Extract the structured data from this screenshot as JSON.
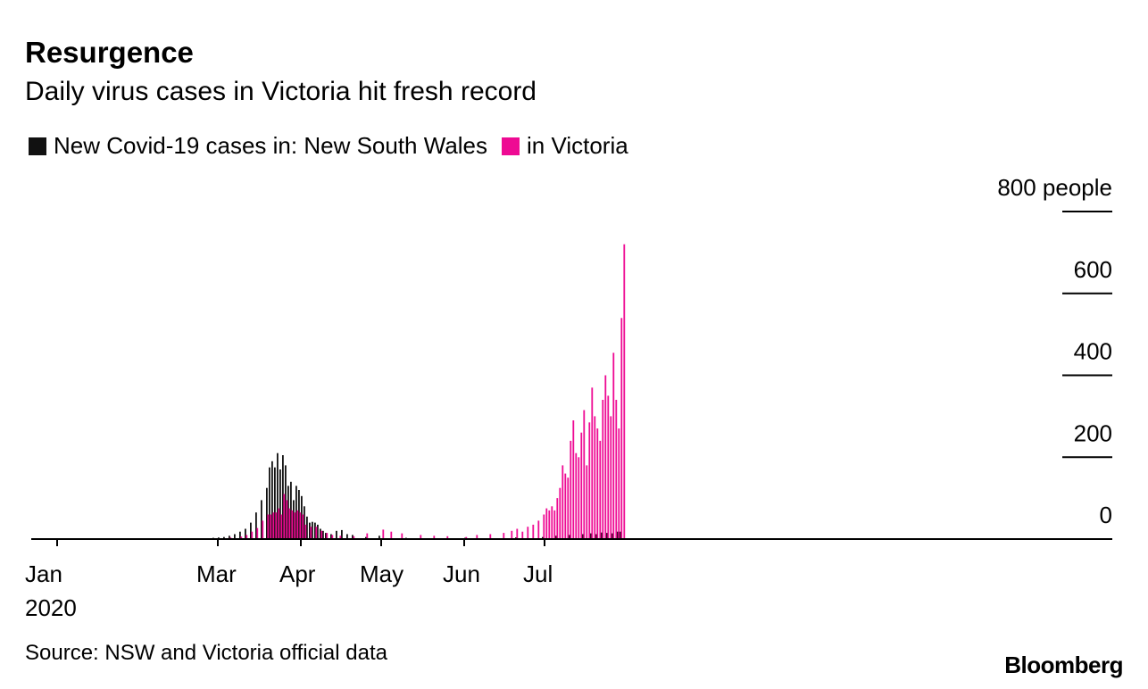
{
  "header": {
    "title": "Resurgence",
    "subtitle": "Daily virus cases in Victoria hit fresh record"
  },
  "legend": {
    "nsw_label": "New Covid-19 cases in: New South Wales",
    "vic_label": "in Victoria"
  },
  "footer": {
    "source": "Source: NSW and Victoria official data",
    "brand": "Bloomberg"
  },
  "colors": {
    "nsw": "#111111",
    "vic": "#ee0a93"
  },
  "chart_data": {
    "type": "bar",
    "x_start": "2020-01-01",
    "ylim": [
      0,
      800
    ],
    "y_ticks": [
      {
        "value": 800,
        "label": "800 people"
      },
      {
        "value": 600,
        "label": "600"
      },
      {
        "value": 400,
        "label": "400"
      },
      {
        "value": 200,
        "label": "200"
      },
      {
        "value": 0,
        "label": "0"
      }
    ],
    "x_ticks": [
      {
        "date": "2020-01-01",
        "label": "Jan",
        "sublabel": "2020"
      },
      {
        "date": "2020-03-01",
        "label": "Mar"
      },
      {
        "date": "2020-04-01",
        "label": "Apr"
      },
      {
        "date": "2020-05-01",
        "label": "May"
      },
      {
        "date": "2020-06-01",
        "label": "Jun"
      },
      {
        "date": "2020-07-01",
        "label": "Jul"
      }
    ],
    "series": [
      {
        "name": "New South Wales",
        "dates": [
          "2020-02-26",
          "2020-02-28",
          "2020-03-01",
          "2020-03-03",
          "2020-03-05",
          "2020-03-07",
          "2020-03-09",
          "2020-03-11",
          "2020-03-13",
          "2020-03-15",
          "2020-03-17",
          "2020-03-19",
          "2020-03-20",
          "2020-03-21",
          "2020-03-22",
          "2020-03-23",
          "2020-03-24",
          "2020-03-25",
          "2020-03-26",
          "2020-03-27",
          "2020-03-28",
          "2020-03-29",
          "2020-03-30",
          "2020-03-31",
          "2020-04-01",
          "2020-04-02",
          "2020-04-03",
          "2020-04-04",
          "2020-04-05",
          "2020-04-06",
          "2020-04-07",
          "2020-04-08",
          "2020-04-09",
          "2020-04-10",
          "2020-04-12",
          "2020-04-14",
          "2020-04-16",
          "2020-04-18",
          "2020-04-20",
          "2020-04-25",
          "2020-04-30",
          "2020-05-10",
          "2020-05-20",
          "2020-06-01",
          "2020-06-10",
          "2020-06-20",
          "2020-06-30",
          "2020-07-05",
          "2020-07-10",
          "2020-07-15",
          "2020-07-18",
          "2020-07-20",
          "2020-07-22",
          "2020-07-24",
          "2020-07-26",
          "2020-07-28",
          "2020-07-29"
        ],
        "values": [
          2,
          3,
          4,
          5,
          8,
          12,
          18,
          25,
          40,
          65,
          95,
          125,
          175,
          190,
          175,
          210,
          170,
          205,
          180,
          130,
          140,
          95,
          130,
          120,
          105,
          80,
          55,
          40,
          42,
          40,
          35,
          25,
          20,
          15,
          12,
          20,
          22,
          12,
          10,
          5,
          8,
          3,
          2,
          3,
          2,
          4,
          5,
          8,
          10,
          12,
          14,
          12,
          16,
          15,
          14,
          18,
          18
        ]
      },
      {
        "name": "Victoria",
        "dates": [
          "2020-03-01",
          "2020-03-05",
          "2020-03-09",
          "2020-03-11",
          "2020-03-13",
          "2020-03-15",
          "2020-03-17",
          "2020-03-19",
          "2020-03-20",
          "2020-03-21",
          "2020-03-22",
          "2020-03-23",
          "2020-03-24",
          "2020-03-25",
          "2020-03-26",
          "2020-03-27",
          "2020-03-28",
          "2020-03-29",
          "2020-03-30",
          "2020-03-31",
          "2020-04-01",
          "2020-04-02",
          "2020-04-04",
          "2020-04-06",
          "2020-04-08",
          "2020-04-10",
          "2020-04-12",
          "2020-04-15",
          "2020-04-20",
          "2020-04-25",
          "2020-05-01",
          "2020-05-04",
          "2020-05-08",
          "2020-05-15",
          "2020-05-20",
          "2020-05-25",
          "2020-06-01",
          "2020-06-05",
          "2020-06-10",
          "2020-06-15",
          "2020-06-18",
          "2020-06-20",
          "2020-06-22",
          "2020-06-24",
          "2020-06-26",
          "2020-06-28",
          "2020-06-30",
          "2020-07-01",
          "2020-07-02",
          "2020-07-03",
          "2020-07-04",
          "2020-07-05",
          "2020-07-06",
          "2020-07-07",
          "2020-07-08",
          "2020-07-09",
          "2020-07-10",
          "2020-07-11",
          "2020-07-12",
          "2020-07-13",
          "2020-07-14",
          "2020-07-15",
          "2020-07-16",
          "2020-07-17",
          "2020-07-18",
          "2020-07-19",
          "2020-07-20",
          "2020-07-21",
          "2020-07-22",
          "2020-07-23",
          "2020-07-24",
          "2020-07-25",
          "2020-07-26",
          "2020-07-27",
          "2020-07-28",
          "2020-07-29",
          "2020-07-30"
        ],
        "values": [
          2,
          4,
          6,
          10,
          18,
          27,
          45,
          60,
          60,
          65,
          65,
          75,
          60,
          110,
          95,
          75,
          70,
          65,
          70,
          65,
          60,
          35,
          30,
          30,
          20,
          15,
          10,
          8,
          7,
          14,
          23,
          18,
          14,
          10,
          8,
          7,
          5,
          10,
          12,
          15,
          20,
          25,
          18,
          30,
          35,
          45,
          60,
          75,
          70,
          80,
          70,
          100,
          125,
          180,
          160,
          150,
          240,
          290,
          210,
          200,
          260,
          315,
          180,
          285,
          370,
          300,
          270,
          240,
          340,
          400,
          350,
          300,
          455,
          340,
          270,
          540,
          720
        ]
      }
    ]
  }
}
